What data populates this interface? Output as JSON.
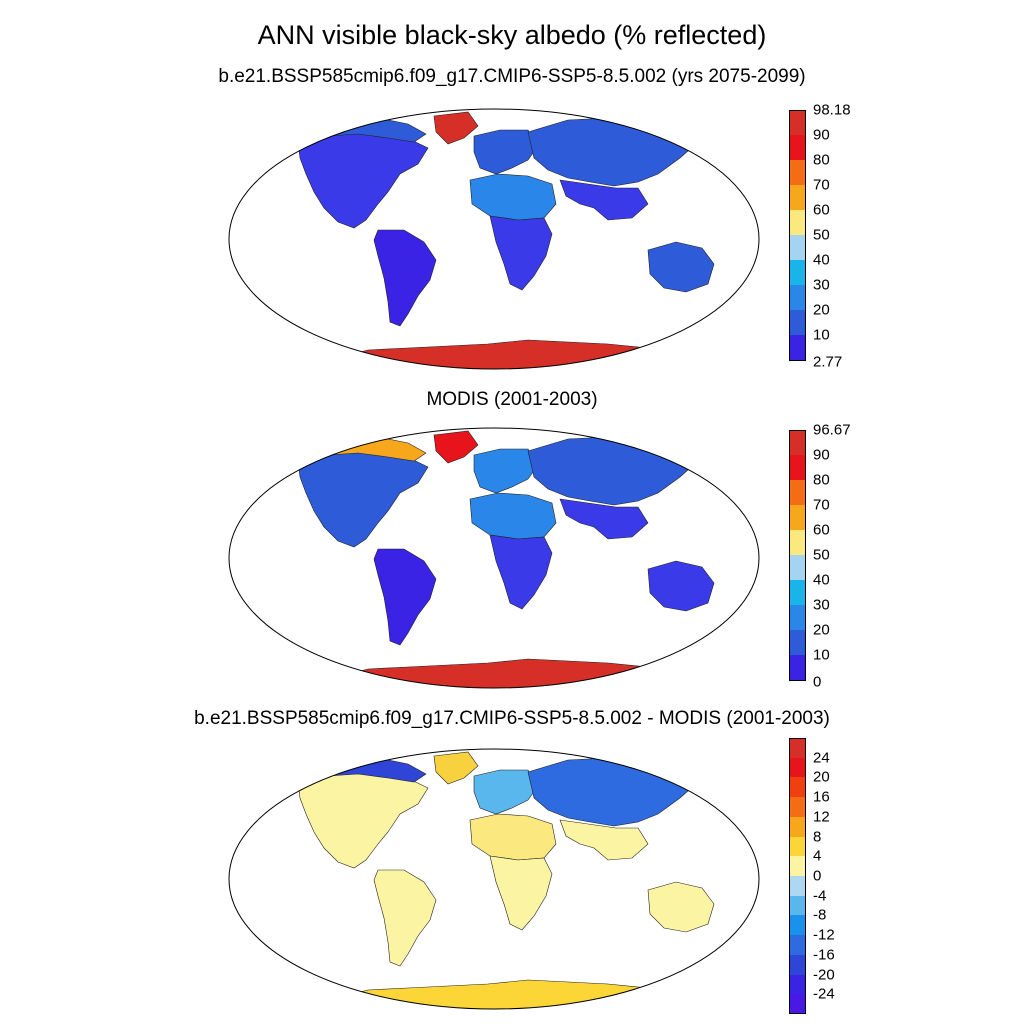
{
  "title": "ANN visible black-sky albedo (% reflected)",
  "panels": [
    {
      "id": "model",
      "subtitle": "b.e21.BSSP585cmip6.f09_g17.CMIP6-SSP5-8.5.002 (yrs 2075-2099)",
      "colorbar": {
        "labels": [
          "98.18",
          "90",
          "80",
          "70",
          "60",
          "50",
          "40",
          "30",
          "20",
          "10",
          "2.77"
        ],
        "colors": [
          "#d62f27",
          "#e8141c",
          "#f46d15",
          "#f7a71c",
          "#fbe97f",
          "#a4d4ef",
          "#18b4ea",
          "#2a86e8",
          "#2e5bd8",
          "#3b23e6"
        ]
      },
      "regions": {
        "north_america": "#3a3ae8",
        "greenland": "#d62f27",
        "canada_arctic": "#2e5bd8",
        "south_america": "#3b23e6",
        "africa_south": "#3a3ae8",
        "sahara": "#2a86e8",
        "europe": "#2e5bd8",
        "asia": "#2e5bd8",
        "india_se_asia": "#3a3ae8",
        "australia": "#2e5bd8",
        "antarctica": "#d62f27"
      }
    },
    {
      "id": "obs",
      "subtitle": "MODIS (2001-2003)",
      "colorbar": {
        "labels": [
          "96.67",
          "90",
          "80",
          "70",
          "60",
          "50",
          "40",
          "30",
          "20",
          "10",
          "0"
        ],
        "colors": [
          "#d62f27",
          "#e8141c",
          "#f46d15",
          "#f7a71c",
          "#fbe97f",
          "#a4d4ef",
          "#18b4ea",
          "#2a86e8",
          "#2e5bd8",
          "#3b23e6"
        ]
      },
      "regions": {
        "north_america": "#2e5bd8",
        "greenland": "#e8141c",
        "canada_arctic": "#f7a71c",
        "south_america": "#3b23e6",
        "africa_south": "#3a3ae8",
        "sahara": "#2a86e8",
        "europe": "#2a86e8",
        "asia": "#2e5bd8",
        "india_se_asia": "#3a3ae8",
        "australia": "#3a3ae8",
        "antarctica": "#d62f27"
      }
    },
    {
      "id": "diff",
      "subtitle": "b.e21.BSSP585cmip6.f09_g17.CMIP6-SSP5-8.5.002 - MODIS (2001-2003)",
      "colorbar": {
        "labels": [
          "24",
          "20",
          "16",
          "12",
          "8",
          "4",
          "0",
          "-4",
          "-8",
          "-12",
          "-16",
          "-20",
          "-24"
        ],
        "colors": [
          "#d62f27",
          "#e8141c",
          "#f0400f",
          "#f46d15",
          "#f7a71c",
          "#fbd636",
          "#fbf4a3",
          "#aed7f2",
          "#5ab7ee",
          "#1a91ea",
          "#2e6ae0",
          "#2e45d8",
          "#3b23e6",
          "#4a18e6"
        ]
      },
      "regions": {
        "north_america": "#fbf4a3",
        "greenland": "#f7d23e",
        "canada_arctic": "#2e45d8",
        "south_america": "#fbf4a3",
        "africa_south": "#fbf4a3",
        "sahara": "#fbe97f",
        "europe": "#5ab7ee",
        "asia": "#2e6ae0",
        "india_se_asia": "#fbf4a3",
        "australia": "#fbf4a3",
        "antarctica": "#fbd636"
      }
    }
  ]
}
